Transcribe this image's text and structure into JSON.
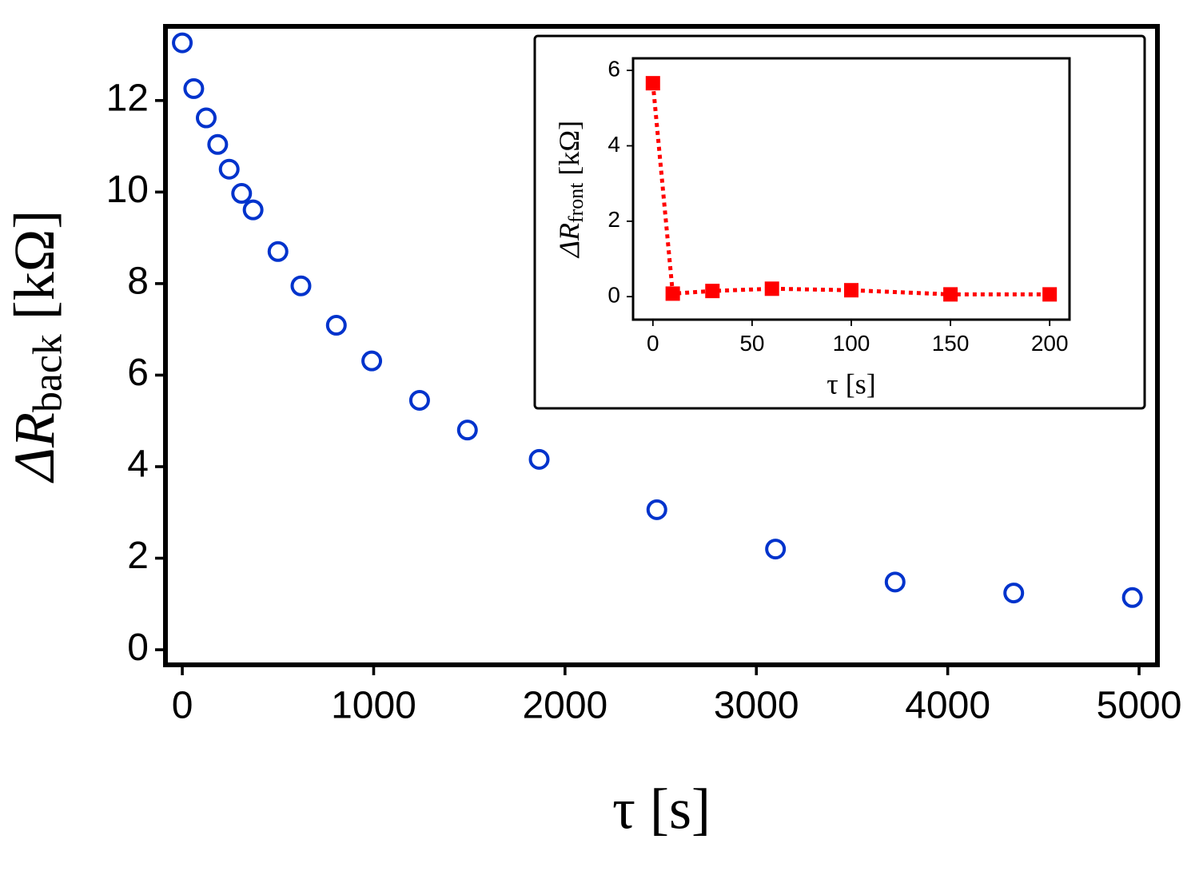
{
  "chart_data": [
    {
      "type": "scatter",
      "xlabel": "τ [s]",
      "ylabel": [
        "ΔR",
        "back",
        "[kΩ]"
      ],
      "x": [
        0,
        60,
        125,
        185,
        245,
        310,
        370,
        500,
        620,
        805,
        990,
        1240,
        1490,
        1865,
        2480,
        3100,
        3725,
        4345,
        4965
      ],
      "values": [
        13.26,
        12.26,
        11.62,
        11.04,
        10.5,
        9.97,
        9.61,
        8.7,
        7.95,
        7.09,
        6.31,
        5.45,
        4.8,
        4.16,
        3.06,
        2.2,
        1.48,
        1.24,
        1.14
      ],
      "color": "#0033cc",
      "xlim": [
        -88,
        5096
      ],
      "ylim": [
        -0.33,
        13.62
      ],
      "xticks": [
        0,
        1000,
        2000,
        3000,
        4000,
        5000
      ],
      "yticks": [
        0,
        2,
        4,
        6,
        8,
        10,
        12
      ]
    },
    {
      "type": "line",
      "xlabel": "τ [s]",
      "ylabel": [
        "ΔR",
        "front",
        "[kΩ]"
      ],
      "x": [
        0,
        10,
        30,
        60,
        100,
        150,
        200
      ],
      "values": [
        5.66,
        0.08,
        0.15,
        0.21,
        0.17,
        0.06,
        0.06
      ],
      "color": "#ff0000",
      "xlim": [
        -10,
        210
      ],
      "ylim": [
        -0.61,
        6.32
      ],
      "xticks": [
        0,
        50,
        100,
        150,
        200
      ],
      "yticks": [
        0,
        2,
        4,
        6
      ]
    }
  ]
}
